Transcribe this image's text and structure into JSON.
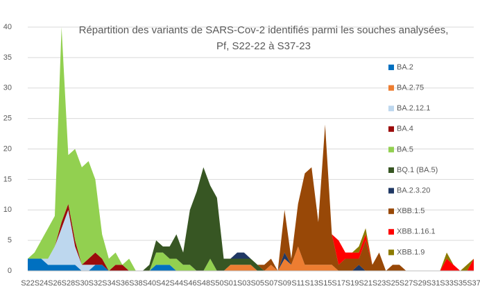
{
  "chart_data": {
    "type": "stacked_area",
    "title": "Répartition des variants de SARS-Cov-2 identifiés parmi les souches analysées, Pf, S22-22 à S37-23",
    "categories": [
      "S22",
      null,
      "S24",
      null,
      "S26",
      null,
      "S28",
      null,
      "S30",
      null,
      "S32",
      null,
      "S34",
      null,
      "S36",
      null,
      "S38",
      null,
      "S40",
      null,
      "S42",
      null,
      "S44",
      null,
      "S46",
      null,
      "S48",
      null,
      "S50",
      null,
      "S01",
      null,
      "S03",
      null,
      "S05",
      null,
      "S07",
      null,
      "S09",
      null,
      "S11",
      null,
      "S13",
      null,
      "S15",
      null,
      "S17",
      null,
      "S19",
      null,
      "S21",
      null,
      "S23",
      null,
      "S25",
      null,
      "S27",
      null,
      "S29",
      null,
      "S31",
      null,
      "S33",
      null,
      "S35",
      null,
      "S37"
    ],
    "ylim": [
      0,
      40
    ],
    "yticks": [
      0,
      5,
      10,
      15,
      20,
      25,
      30,
      35,
      40
    ],
    "grid": true,
    "legend": "right",
    "series": [
      {
        "name": "BA.2",
        "color": "#0070c0",
        "values": [
          2,
          2,
          2,
          1,
          1,
          1,
          1,
          1,
          0,
          0,
          1,
          1,
          0,
          0,
          0,
          0,
          0,
          0,
          0,
          1,
          1,
          1,
          0,
          0,
          0,
          0,
          0,
          0,
          0,
          0,
          0,
          0,
          0,
          0,
          0,
          0,
          0,
          0,
          0,
          0,
          0,
          0,
          0,
          0,
          0,
          0,
          0,
          0,
          0,
          0,
          0,
          0,
          0,
          0,
          0,
          0,
          0,
          0,
          0,
          0,
          0,
          0,
          0,
          0,
          0,
          0,
          0
        ]
      },
      {
        "name": "BA.2.75",
        "color": "#ed7d31",
        "values": [
          0,
          0,
          0,
          0,
          0,
          0,
          0,
          0,
          0,
          0,
          0,
          0,
          0,
          0,
          0,
          0,
          0,
          0,
          0,
          0,
          0,
          0,
          0,
          0,
          0,
          0,
          0,
          0,
          0,
          0,
          1,
          1,
          1,
          1,
          0,
          0,
          1,
          0,
          2,
          1,
          4,
          1,
          1,
          1,
          1,
          1,
          0,
          0,
          0,
          0,
          0,
          0,
          0,
          0,
          0,
          0,
          0,
          0,
          0,
          0,
          0,
          0,
          0,
          0,
          0,
          0,
          0
        ]
      },
      {
        "name": "BA.2.12.1",
        "color": "#bdd7ee",
        "values": [
          0,
          0,
          0,
          1,
          3,
          6,
          9,
          3,
          1,
          1,
          0,
          0,
          0,
          0,
          0,
          0,
          0,
          0,
          0,
          0,
          0,
          0,
          0,
          0,
          0,
          0,
          0,
          0,
          0,
          0,
          0,
          0,
          0,
          0,
          0,
          0,
          0,
          0,
          0,
          0,
          0,
          0,
          0,
          0,
          0,
          0,
          0,
          0,
          0,
          0,
          0,
          0,
          0,
          0,
          0,
          0,
          0,
          0,
          0,
          0,
          0,
          0,
          0,
          0,
          0,
          0,
          0
        ]
      },
      {
        "name": "BA.4",
        "color": "#9b0b0b",
        "values": [
          0,
          0,
          0,
          0,
          0,
          1,
          1,
          1,
          0,
          1,
          2,
          1,
          0,
          1,
          1,
          0,
          0,
          0,
          0,
          0,
          0,
          0,
          0,
          0,
          0,
          0,
          0,
          0,
          0,
          0,
          0,
          0,
          0,
          0,
          0,
          0,
          0,
          0,
          0,
          0,
          0,
          0,
          0,
          0,
          0,
          0,
          0,
          0,
          0,
          0,
          0,
          0,
          0,
          0,
          0,
          0,
          0,
          0,
          0,
          0,
          0,
          0,
          0,
          0,
          0,
          0,
          0
        ]
      },
      {
        "name": "BA.5",
        "color": "#92d050",
        "values": [
          0,
          1,
          3,
          5,
          5,
          32,
          8,
          15,
          16,
          16,
          12,
          4,
          2,
          2,
          0,
          2,
          0,
          0,
          0,
          2,
          2,
          1,
          2,
          1,
          1,
          0,
          0,
          2,
          0,
          0,
          0,
          0,
          0,
          0,
          0,
          0,
          0,
          0,
          0,
          0,
          0,
          0,
          0,
          0,
          0,
          0,
          0,
          0,
          0,
          0,
          0,
          0,
          0,
          0,
          0,
          0,
          0,
          0,
          0,
          0,
          0,
          0,
          0,
          0,
          0,
          0,
          0
        ]
      },
      {
        "name": "BQ.1 (BA.5)",
        "color": "#375623",
        "values": [
          0,
          0,
          0,
          0,
          0,
          0,
          0,
          0,
          0,
          0,
          0,
          0,
          0,
          0,
          0,
          0,
          0,
          0,
          1,
          2,
          1,
          2,
          4,
          2,
          9,
          13,
          17,
          12,
          12,
          2,
          1,
          1,
          1,
          1,
          1,
          0,
          0,
          0,
          0,
          0,
          0,
          0,
          0,
          0,
          0,
          0,
          0,
          0,
          0,
          0,
          0,
          0,
          0,
          0,
          0,
          0,
          0,
          0,
          0,
          0,
          0,
          0,
          0,
          0,
          0,
          0,
          0
        ]
      },
      {
        "name": "BA.2.3.20",
        "color": "#203864",
        "values": [
          0,
          0,
          0,
          0,
          0,
          0,
          0,
          0,
          0,
          0,
          0,
          0,
          0,
          0,
          0,
          0,
          0,
          0,
          0,
          0,
          0,
          0,
          0,
          0,
          0,
          0,
          0,
          0,
          0,
          0,
          0,
          1,
          1,
          0,
          0,
          0,
          0,
          0,
          1,
          0,
          0,
          0,
          0,
          0,
          0,
          0,
          0,
          0,
          0,
          1,
          0,
          0,
          0,
          0,
          0,
          0,
          0,
          0,
          0,
          0,
          0,
          0,
          0,
          0,
          0,
          0,
          0
        ]
      },
      {
        "name": "XBB.1.5",
        "color": "#984807",
        "values": [
          0,
          0,
          0,
          0,
          0,
          0,
          0,
          0,
          0,
          0,
          0,
          0,
          0,
          0,
          0,
          0,
          0,
          0,
          0,
          0,
          0,
          0,
          0,
          0,
          0,
          0,
          0,
          0,
          0,
          0,
          0,
          0,
          0,
          0,
          0,
          1,
          1,
          0,
          7,
          1,
          7,
          15,
          16,
          7,
          23,
          5,
          1,
          2,
          2,
          1,
          5,
          1,
          3,
          0,
          1,
          1,
          0,
          0,
          0,
          0,
          0,
          0,
          0,
          0,
          0,
          0,
          0
        ]
      },
      {
        "name": "XBB.1.16.1",
        "color": "#ff0000",
        "values": [
          0,
          0,
          0,
          0,
          0,
          0,
          0,
          0,
          0,
          0,
          0,
          0,
          0,
          0,
          0,
          0,
          0,
          0,
          0,
          0,
          0,
          0,
          0,
          0,
          0,
          0,
          0,
          0,
          0,
          0,
          0,
          0,
          0,
          0,
          0,
          0,
          0,
          0,
          0,
          0,
          0,
          0,
          0,
          0,
          0,
          0,
          4,
          1,
          1,
          1,
          1,
          0,
          0,
          0,
          0,
          0,
          0,
          0,
          0,
          0,
          0,
          0,
          2,
          1,
          0,
          0,
          2
        ]
      },
      {
        "name": "XBB.1.9",
        "color": "#8c7a00",
        "values": [
          0,
          0,
          0,
          0,
          0,
          0,
          0,
          0,
          0,
          0,
          0,
          0,
          0,
          0,
          0,
          0,
          0,
          0,
          0,
          0,
          0,
          0,
          0,
          0,
          0,
          0,
          0,
          0,
          0,
          0,
          0,
          0,
          0,
          0,
          0,
          0,
          0,
          0,
          0,
          0,
          0,
          0,
          0,
          0,
          0,
          0,
          0,
          0,
          0,
          1,
          1,
          0,
          0,
          0,
          0,
          0,
          0,
          0,
          0,
          0,
          0,
          0,
          1,
          0,
          0,
          1,
          0
        ]
      }
    ]
  }
}
